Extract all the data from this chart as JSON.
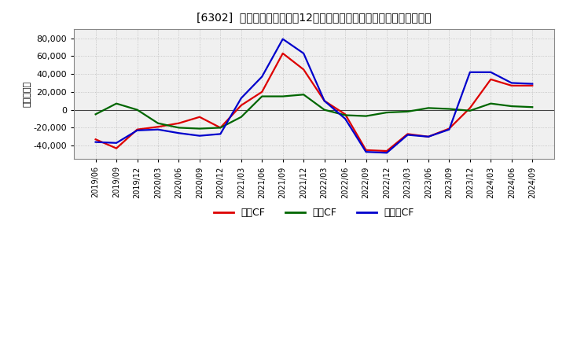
{
  "title": "[6302]  キャッシュフローの12か月移動合計の対前年同期増減額の推移",
  "ylabel": "（百万円）",
  "background_color": "#ffffff",
  "plot_background_color": "#f0f0f0",
  "grid_color": "#bbbbbb",
  "x_labels": [
    "2019/06",
    "2019/09",
    "2019/12",
    "2020/03",
    "2020/06",
    "2020/09",
    "2020/12",
    "2021/03",
    "2021/06",
    "2021/09",
    "2021/12",
    "2022/03",
    "2022/06",
    "2022/09",
    "2022/12",
    "2023/03",
    "2023/06",
    "2023/09",
    "2023/12",
    "2024/03",
    "2024/06",
    "2024/09"
  ],
  "operating_cf": [
    -33000,
    -43000,
    -22000,
    -19000,
    -15000,
    -8000,
    -20000,
    5000,
    20000,
    63000,
    45000,
    10000,
    -5000,
    -45000,
    -46000,
    -27000,
    -30000,
    -21000,
    2000,
    34000,
    27000,
    27000
  ],
  "investing_cf": [
    -5000,
    7000,
    0,
    -15000,
    -20000,
    -21000,
    -20000,
    -8000,
    15000,
    15000,
    17000,
    0,
    -6000,
    -7000,
    -3000,
    -2000,
    2000,
    1000,
    -1000,
    7000,
    4000,
    3000
  ],
  "free_cf": [
    -36000,
    -37000,
    -23000,
    -22000,
    -26000,
    -29000,
    -27000,
    13000,
    37000,
    79000,
    63000,
    10000,
    -10000,
    -47000,
    -48000,
    -28000,
    -30000,
    -22000,
    42000,
    42000,
    30000,
    29000
  ],
  "operating_color": "#dd0000",
  "investing_color": "#006600",
  "free_color": "#0000cc",
  "line_width": 1.6,
  "ylim": [
    -55000,
    90000
  ],
  "yticks": [
    -40000,
    -20000,
    0,
    20000,
    40000,
    60000,
    80000
  ],
  "legend_labels": [
    "営業CF",
    "投資CF",
    "フリーCF"
  ]
}
